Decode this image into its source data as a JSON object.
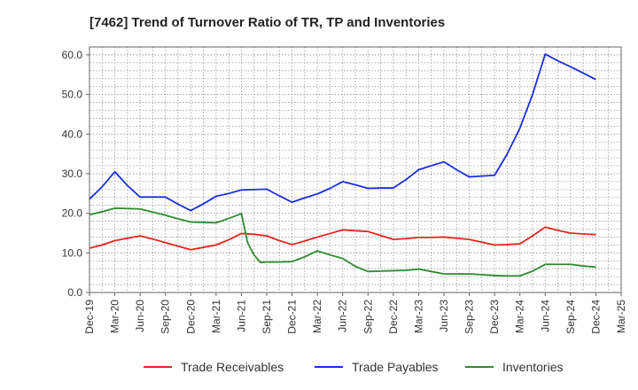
{
  "chart_data": {
    "type": "line",
    "title": "[7462]  Trend of Turnover Ratio of TR, TP and Inventories",
    "xlabel": "",
    "ylabel": "",
    "ylim": [
      0,
      62
    ],
    "yticks": [
      "0.0",
      "10.0",
      "20.0",
      "30.0",
      "40.0",
      "50.0",
      "60.0"
    ],
    "x_tick_labels": [
      "Dec-19",
      "Mar-20",
      "Jun-20",
      "Sep-20",
      "Dec-20",
      "Mar-21",
      "Jun-21",
      "Sep-21",
      "Dec-21",
      "Mar-22",
      "Jun-22",
      "Sep-22",
      "Dec-22",
      "Mar-23",
      "Jun-23",
      "Sep-23",
      "Dec-23",
      "Mar-24",
      "Jun-24",
      "Sep-24",
      "Dec-24",
      "Mar-25"
    ],
    "grid": true,
    "legend_position": "bottom",
    "colors": {
      "trade_receivables": "#e8251f",
      "trade_payables": "#1a2ee8",
      "inventories": "#2e8b2e",
      "grid": "#999999",
      "axis": "#666666"
    },
    "series": [
      {
        "name": "Trade Receivables",
        "color_key": "trade_receivables",
        "points": [
          [
            0,
            11.2
          ],
          [
            1,
            12.0
          ],
          [
            2,
            13.1
          ],
          [
            3,
            13.7
          ],
          [
            4,
            14.3
          ],
          [
            5,
            13.5
          ],
          [
            6,
            12.6
          ],
          [
            7,
            11.7
          ],
          [
            8,
            10.8
          ],
          [
            9,
            11.4
          ],
          [
            10,
            12.0
          ],
          [
            11,
            13.3
          ],
          [
            12,
            14.9
          ],
          [
            13,
            14.7
          ],
          [
            14,
            14.3
          ],
          [
            15,
            13.1
          ],
          [
            16,
            12.1
          ],
          [
            17,
            13.0
          ],
          [
            18,
            14.0
          ],
          [
            19,
            14.9
          ],
          [
            20,
            15.8
          ],
          [
            21,
            15.6
          ],
          [
            22,
            15.4
          ],
          [
            23,
            14.4
          ],
          [
            24,
            13.4
          ],
          [
            25,
            13.6
          ],
          [
            26,
            13.9
          ],
          [
            27,
            13.9
          ],
          [
            28,
            14.0
          ],
          [
            29,
            13.7
          ],
          [
            30,
            13.4
          ],
          [
            31,
            12.7
          ],
          [
            32,
            12.0
          ],
          [
            33,
            12.1
          ],
          [
            34,
            12.3
          ],
          [
            35,
            14.3
          ],
          [
            36,
            16.5
          ],
          [
            37,
            15.7
          ],
          [
            38,
            15.0
          ],
          [
            39,
            14.8
          ],
          [
            40,
            14.6
          ]
        ]
      },
      {
        "name": "Trade Payables",
        "color_key": "trade_payables",
        "points": [
          [
            0,
            23.6
          ],
          [
            1,
            26.7
          ],
          [
            2,
            30.5
          ],
          [
            3,
            27.0
          ],
          [
            4,
            24.1
          ],
          [
            5,
            24.1
          ],
          [
            6,
            24.1
          ],
          [
            7,
            22.3
          ],
          [
            8,
            20.7
          ],
          [
            9,
            22.4
          ],
          [
            10,
            24.3
          ],
          [
            11,
            25.0
          ],
          [
            12,
            25.9
          ],
          [
            13,
            26.0
          ],
          [
            14,
            26.1
          ],
          [
            15,
            24.4
          ],
          [
            16,
            22.8
          ],
          [
            17,
            23.9
          ],
          [
            18,
            24.9
          ],
          [
            19,
            26.3
          ],
          [
            20,
            28.0
          ],
          [
            21,
            27.2
          ],
          [
            22,
            26.3
          ],
          [
            23,
            26.4
          ],
          [
            24,
            26.4
          ],
          [
            25,
            28.5
          ],
          [
            26,
            31.0
          ],
          [
            27,
            32.0
          ],
          [
            28,
            33.0
          ],
          [
            29,
            31.0
          ],
          [
            30,
            29.2
          ],
          [
            31,
            29.4
          ],
          [
            32,
            29.6
          ],
          [
            33,
            35.0
          ],
          [
            34,
            41.5
          ],
          [
            35,
            50.0
          ],
          [
            36,
            60.2
          ],
          [
            37,
            58.5
          ],
          [
            38,
            57.0
          ],
          [
            39,
            55.4
          ],
          [
            40,
            53.8
          ]
        ]
      },
      {
        "name": "Inventories",
        "color_key": "inventories",
        "points": [
          [
            0,
            19.6
          ],
          [
            1,
            20.4
          ],
          [
            2,
            21.3
          ],
          [
            3,
            21.2
          ],
          [
            4,
            21.1
          ],
          [
            5,
            20.3
          ],
          [
            6,
            19.5
          ],
          [
            7,
            18.6
          ],
          [
            8,
            17.8
          ],
          [
            9,
            17.7
          ],
          [
            10,
            17.6
          ],
          [
            11,
            18.7
          ],
          [
            12,
            19.9
          ],
          [
            12.5,
            12.5
          ],
          [
            13,
            9.5
          ],
          [
            13.5,
            7.6
          ],
          [
            14,
            7.7
          ],
          [
            15,
            7.7
          ],
          [
            16,
            7.8
          ],
          [
            17,
            9.0
          ],
          [
            18,
            10.5
          ],
          [
            19,
            9.5
          ],
          [
            20,
            8.6
          ],
          [
            21,
            6.6
          ],
          [
            22,
            5.3
          ],
          [
            23,
            5.4
          ],
          [
            24,
            5.5
          ],
          [
            25,
            5.6
          ],
          [
            26,
            5.9
          ],
          [
            27,
            5.3
          ],
          [
            28,
            4.7
          ],
          [
            29,
            4.7
          ],
          [
            30,
            4.7
          ],
          [
            31,
            4.5
          ],
          [
            32,
            4.3
          ],
          [
            33,
            4.2
          ],
          [
            34,
            4.2
          ],
          [
            35,
            5.4
          ],
          [
            36,
            7.1
          ],
          [
            37,
            7.1
          ],
          [
            38,
            7.1
          ],
          [
            39,
            6.7
          ],
          [
            40,
            6.4
          ]
        ]
      }
    ]
  }
}
